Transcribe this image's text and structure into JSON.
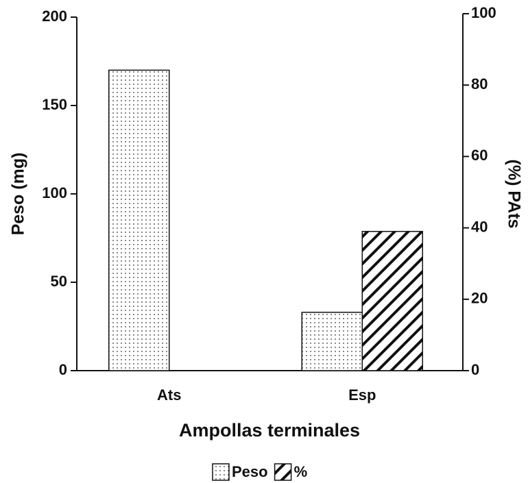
{
  "chart_data": {
    "type": "bar",
    "categories": [
      "Ats",
      "Esp"
    ],
    "series": [
      {
        "name": "Peso",
        "color": "#111111",
        "pattern": "dots",
        "axis": "y",
        "values": [
          170,
          33
        ]
      },
      {
        "name": "%",
        "color": "#111111",
        "pattern": "hatch",
        "axis": "y2",
        "values": [
          null,
          39
        ]
      }
    ],
    "xlabel": "Ampollas terminales",
    "ylabel": "Peso (mg)",
    "y2label": "(%) PAts",
    "ylim": [
      0,
      200
    ],
    "yticks": [
      0,
      50,
      100,
      150,
      200
    ],
    "y2lim": [
      0,
      100
    ],
    "y2ticks": [
      0,
      20,
      40,
      60,
      80,
      100
    ],
    "legend": "bottom"
  }
}
